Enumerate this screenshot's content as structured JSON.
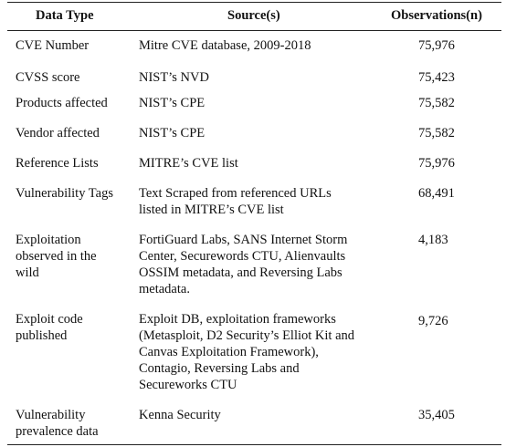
{
  "headers": {
    "data_type": "Data Type",
    "sources": "Source(s)",
    "observations": "Observations(n)"
  },
  "rows": [
    {
      "data_type": [
        "CVE Number"
      ],
      "sources": [
        "Mitre CVE database, 2009-2018"
      ],
      "observations": "75,976"
    },
    {
      "data_type": [
        "CVSS score"
      ],
      "sources": [
        "NIST’s NVD"
      ],
      "observations": "75,423"
    },
    {
      "data_type": [
        "Products affected"
      ],
      "sources": [
        "NIST’s CPE"
      ],
      "observations": "75,582"
    },
    {
      "data_type": [
        "Vendor affected"
      ],
      "sources": [
        "NIST’s CPE"
      ],
      "observations": "75,582"
    },
    {
      "data_type": [
        "Reference Lists"
      ],
      "sources": [
        "MITRE’s CVE list"
      ],
      "observations": "75,976"
    },
    {
      "data_type": [
        "Vulnerability Tags"
      ],
      "sources": [
        "Text Scraped from referenced URLs",
        "listed in MITRE’s CVE list"
      ],
      "observations": "68,491"
    },
    {
      "data_type": [
        "Exploitation",
        "observed in the",
        "wild"
      ],
      "sources": [
        "FortiGuard Labs, SANS Internet Storm",
        "Center, Securewords CTU, Alienvaults",
        "OSSIM metadata, and Reversing Labs",
        "metadata."
      ],
      "observations": "4,183"
    },
    {
      "data_type": [
        "Exploit code",
        "published"
      ],
      "sources": [
        "Exploit DB, exploitation frameworks",
        "(Metasploit, D2 Security’s Elliot Kit and",
        "Canvas Exploitation Framework),",
        "Contagio, Reversing Labs and",
        "Secureworks CTU"
      ],
      "observations": "9,726"
    },
    {
      "data_type": [
        "Vulnerability",
        "prevalence data"
      ],
      "sources": [
        "Kenna Security"
      ],
      "observations": "35,405"
    }
  ]
}
